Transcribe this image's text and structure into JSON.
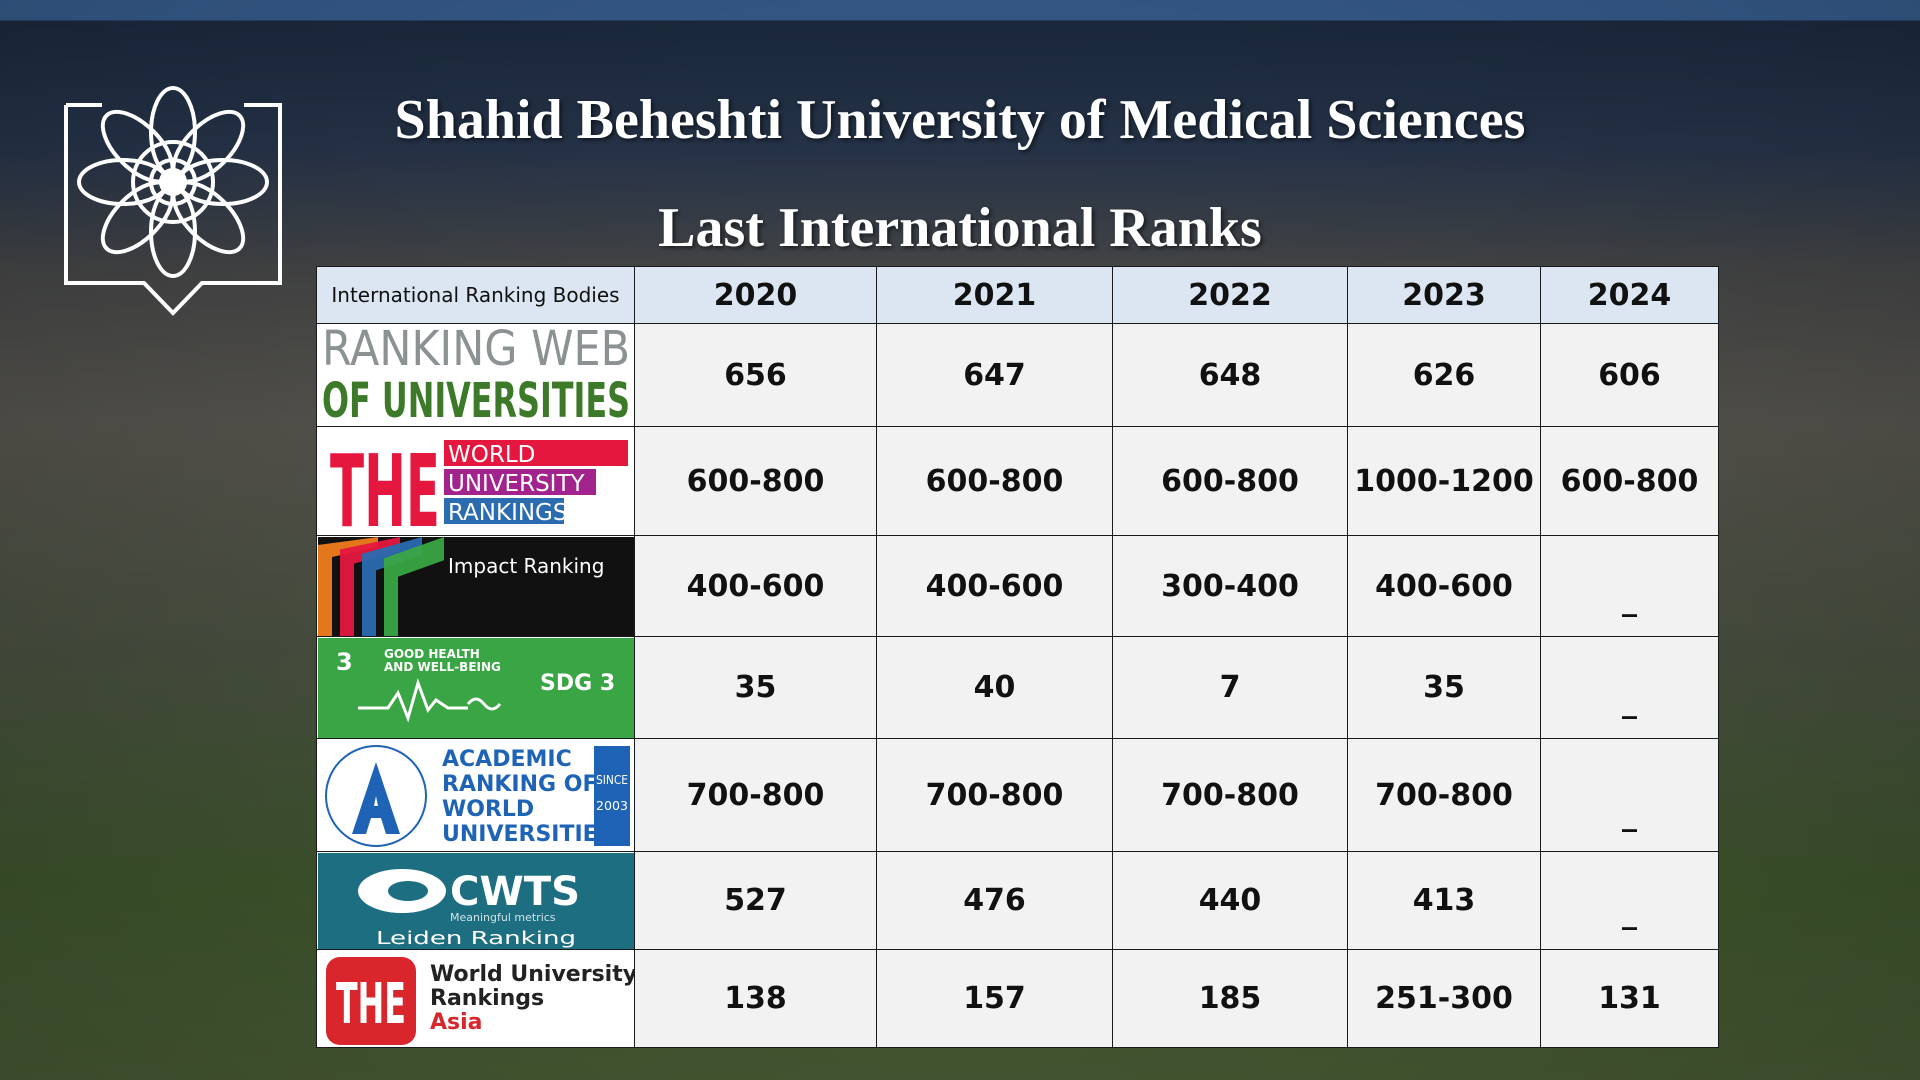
{
  "title": "Shahid Beheshti University of Medical Sciences",
  "subtitle": "Last International Ranks",
  "table": {
    "header": [
      "International Ranking Bodies",
      2020,
      2021,
      2022,
      2023,
      2024
    ],
    "rows": [
      {
        "logo": [
          "RANKING WEB",
          "OF UNIVERSITIES"
        ],
        "cells": [
          656,
          647,
          648,
          626,
          606
        ]
      },
      {
        "logo": [
          "THE",
          "WORLD",
          "UNIVERSITY",
          "RANKINGS"
        ],
        "cells": [
          "600-800",
          "600-800",
          "600-800",
          "1000-1200",
          "600-800"
        ]
      },
      {
        "logo": [
          "Impact Ranking"
        ],
        "cells": [
          "400-600",
          "400-600",
          "300-400",
          "400-600",
          "_"
        ]
      },
      {
        "logo": [
          "3",
          "GOOD HEALTH",
          "AND WELL-BEING",
          "SDG 3"
        ],
        "cells": [
          35,
          40,
          7,
          35,
          "_"
        ]
      },
      {
        "logo": [
          "ACADEMIC",
          "RANKING OF",
          "WORLD",
          "UNIVERSITIES",
          "SINCE",
          "2003"
        ],
        "cells": [
          "700-800",
          "700-800",
          "700-800",
          "700-800",
          "_"
        ]
      },
      {
        "logo": [
          "CWTS",
          "Meaningful metrics",
          "Leiden Ranking"
        ],
        "cells": [
          527,
          476,
          440,
          413,
          "_"
        ]
      },
      {
        "logo": [
          "THE",
          "World University",
          "Rankings",
          "Asia"
        ],
        "cells": [
          138,
          157,
          185,
          "251-300",
          131
        ]
      }
    ]
  }
}
